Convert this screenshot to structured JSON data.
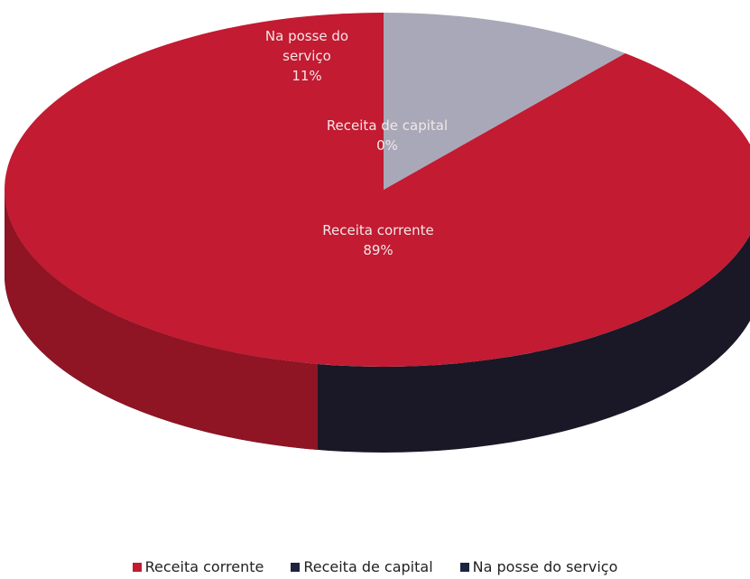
{
  "chart_data": {
    "type": "pie",
    "title": "",
    "labels": [
      "Receita corrente",
      "Receita de capital",
      "Na posse do serviço"
    ],
    "values": [
      89,
      0,
      11
    ],
    "value_labels": [
      "89%",
      "0%",
      "11%"
    ],
    "colors": [
      "#c21b32",
      "#1c2440",
      "#a8a8b8"
    ],
    "label_colors": [
      "#c21b32",
      "#1c2440",
      "#1c2440"
    ],
    "legend": "bottom",
    "style": "3d"
  }
}
